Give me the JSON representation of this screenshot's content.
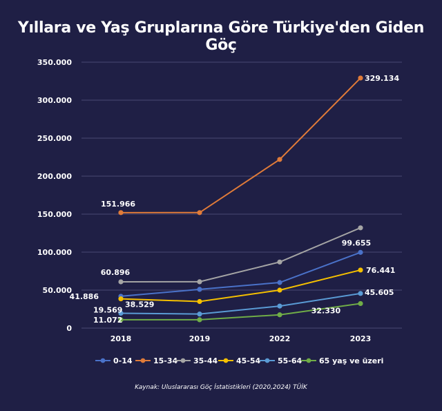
{
  "title": "Yıllara ve Yaş Gruplarına Göre Türkiye'den Giden Göç",
  "source": "Kaynak: Uluslararası Göç İstatistikleri (2020,2024) TÜİK",
  "chart_data": {
    "type": "line",
    "title": "Yıllara ve Yaş Gruplarına Göre Türkiye'den Giden Göç",
    "categories": [
      "2018",
      "2019",
      "2022",
      "2023"
    ],
    "ylim": [
      0,
      350000
    ],
    "yticks": [
      {
        "value": 0,
        "label": "0"
      },
      {
        "value": 50000,
        "label": "50.000"
      },
      {
        "value": 100000,
        "label": "100.000"
      },
      {
        "value": 150000,
        "label": "150.000"
      },
      {
        "value": 200000,
        "label": "200.000"
      },
      {
        "value": 250000,
        "label": "250.000"
      },
      {
        "value": 300000,
        "label": "300.000"
      },
      {
        "value": 350000,
        "label": "350.000"
      }
    ],
    "grid": true,
    "legend_position": "bottom",
    "series": [
      {
        "name": "0-14",
        "color": "#4a72c9",
        "values": [
          41886,
          51000,
          60000,
          99655
        ],
        "data_labels": [
          {
            "index": 0,
            "text": "41.886"
          },
          {
            "index": 3,
            "text": "99.655"
          }
        ]
      },
      {
        "name": "15-34",
        "color": "#e07b39",
        "values": [
          151966,
          152000,
          222000,
          329134
        ],
        "data_labels": [
          {
            "index": 0,
            "text": "151.966"
          },
          {
            "index": 3,
            "text": "329.134"
          }
        ]
      },
      {
        "name": "35-44",
        "color": "#a5a5a5",
        "values": [
          60896,
          61000,
          87000,
          132000
        ],
        "data_labels": [
          {
            "index": 0,
            "text": "60.896"
          }
        ]
      },
      {
        "name": "45-54",
        "color": "#f5c000",
        "values": [
          38529,
          35000,
          50000,
          76441
        ],
        "data_labels": [
          {
            "index": 0,
            "text": "38.529"
          },
          {
            "index": 3,
            "text": "76.441"
          }
        ]
      },
      {
        "name": "55-64",
        "color": "#5a9bd5",
        "values": [
          19569,
          18500,
          29000,
          45605
        ],
        "data_labels": [
          {
            "index": 0,
            "text": "19.569"
          },
          {
            "index": 3,
            "text": "45.605"
          }
        ]
      },
      {
        "name": "65 yaş ve üzeri",
        "color": "#70ad47",
        "values": [
          11072,
          11000,
          17500,
          32330
        ],
        "data_labels": [
          {
            "index": 0,
            "text": "11.072"
          },
          {
            "index": 3,
            "text": "32.330"
          }
        ]
      }
    ]
  }
}
